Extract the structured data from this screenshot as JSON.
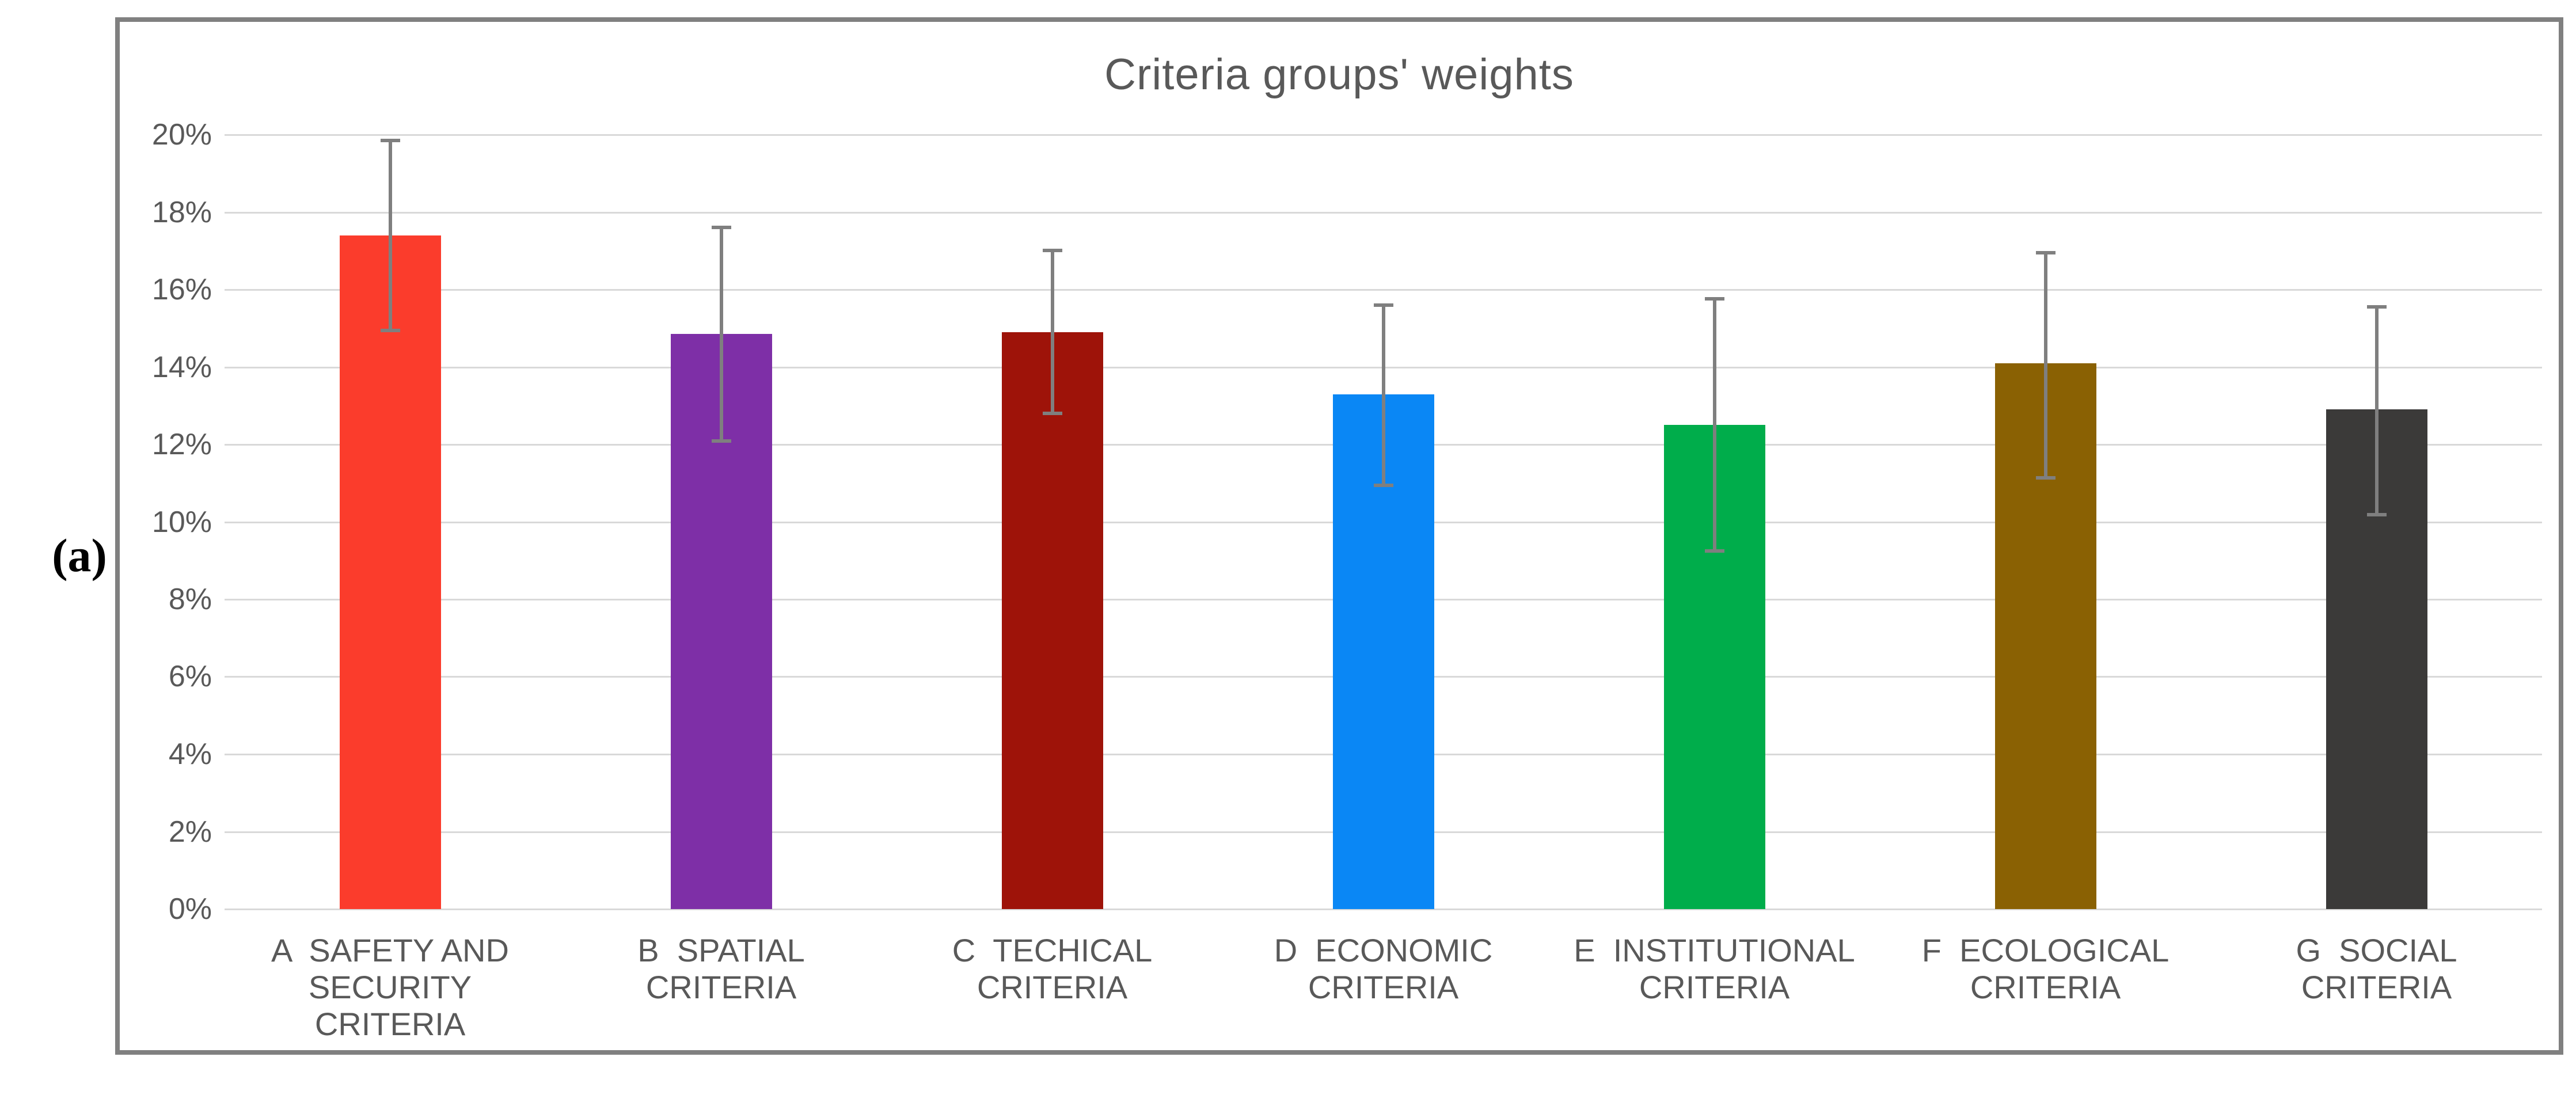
{
  "figure_label": "(a)",
  "colors": {
    "grid": "#D9D9D9",
    "figure_border": "#808080",
    "text": "#595959",
    "error_bar": "#7F7F7F",
    "background": "#FFFFFF"
  },
  "chart_data": {
    "type": "bar",
    "title": "Criteria groups' weights",
    "xlabel": "",
    "ylabel": "",
    "ylim": [
      0,
      20
    ],
    "y_tick_step_pct": 2,
    "y_tick_labels_top_to_bottom": [
      "20%",
      "18%",
      "16%",
      "14%",
      "12%",
      "10%",
      "8%",
      "6%",
      "4%",
      "2%",
      "0%"
    ],
    "grid": true,
    "legend": false,
    "error_bars": true,
    "categories": [
      {
        "key": "A",
        "label": "A  SAFETY AND SECURITY CRITERIA",
        "label_lines": [
          "A  SAFETY AND",
          "SECURITY",
          "CRITERIA"
        ],
        "value_pct": 17.4,
        "error_low_pct": 14.9,
        "error_high_pct": 19.9,
        "color": "#FB3C2C"
      },
      {
        "key": "B",
        "label": "B  SPATIAL CRITERIA",
        "label_lines": [
          "B  SPATIAL",
          "CRITERIA"
        ],
        "value_pct": 14.85,
        "error_low_pct": 12.05,
        "error_high_pct": 17.65,
        "color": "#7E2FA7"
      },
      {
        "key": "C",
        "label": "C  TECHICAL CRITERIA",
        "label_lines": [
          "C  TECHICAL",
          "CRITERIA"
        ],
        "value_pct": 14.9,
        "error_low_pct": 12.75,
        "error_high_pct": 17.05,
        "color": "#9E1309"
      },
      {
        "key": "D",
        "label": "D  ECONOMIC CRITERIA",
        "label_lines": [
          "D  ECONOMIC",
          "CRITERIA"
        ],
        "value_pct": 13.3,
        "error_low_pct": 10.9,
        "error_high_pct": 15.65,
        "color": "#0A87F5"
      },
      {
        "key": "E",
        "label": "E  INSTITUTIONAL CRITERIA",
        "label_lines": [
          "E  INSTITUTIONAL",
          "CRITERIA"
        ],
        "value_pct": 12.5,
        "error_low_pct": 9.2,
        "error_high_pct": 15.8,
        "color": "#00AD4B"
      },
      {
        "key": "F",
        "label": "F  ECOLOGICAL CRITERIA",
        "label_lines": [
          "F  ECOLOGICAL",
          "CRITERIA"
        ],
        "value_pct": 14.1,
        "error_low_pct": 11.1,
        "error_high_pct": 17.0,
        "color": "#8A6103"
      },
      {
        "key": "G",
        "label": "G  SOCIAL CRITERIA",
        "label_lines": [
          "G  SOCIAL",
          "CRITERIA"
        ],
        "value_pct": 12.9,
        "error_low_pct": 10.15,
        "error_high_pct": 15.6,
        "color": "#3B3A39"
      }
    ]
  }
}
